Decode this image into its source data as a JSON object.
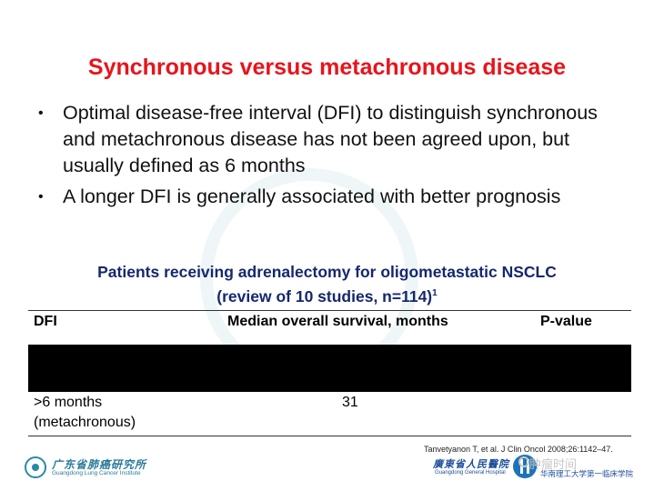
{
  "slide": {
    "title": "Synchronous versus metachronous disease",
    "bullets": [
      {
        "text": "Optimal disease-free interval (DFI) to distinguish synchronous and metachronous disease has not been agreed upon, but usually defined as 6 months"
      },
      {
        "text": "A longer DFI is generally associated with better prognosis"
      }
    ],
    "bullet_glyph": "•",
    "subtitle_line1": "Patients receiving adrenalectomy for oligometastatic NSCLC",
    "subtitle_line2": "(review of 10 studies, n=114)",
    "subtitle_sup": "1"
  },
  "table": {
    "headers": {
      "dfi": "DFI",
      "survival": "Median overall survival, months",
      "p_value": "P-value"
    },
    "redacted_row_color": "#000000",
    "rows": [
      {
        "dfi_line1": ">6 months",
        "dfi_line2": "(metachronous)",
        "survival": "31",
        "p_value": ""
      }
    ]
  },
  "reference": "Tanvetyanon T, et al. J Clin Oncol 2008;26:1142–47.",
  "logos": {
    "left_name": "广东省肺癌研究所",
    "left_en": "Guangdong Lung Cancer Institute",
    "right_name": "廣東省人民醫院",
    "right_en": "Guangdong General Hospital",
    "right_uni": "华南理工大学第一临床学院"
  },
  "watermark": "肿瘤时间",
  "colors": {
    "title": "#e8141b",
    "subtitle": "#15286e",
    "logo_teal": "#2a7a9a",
    "logo_blue": "#1e4e9a"
  }
}
